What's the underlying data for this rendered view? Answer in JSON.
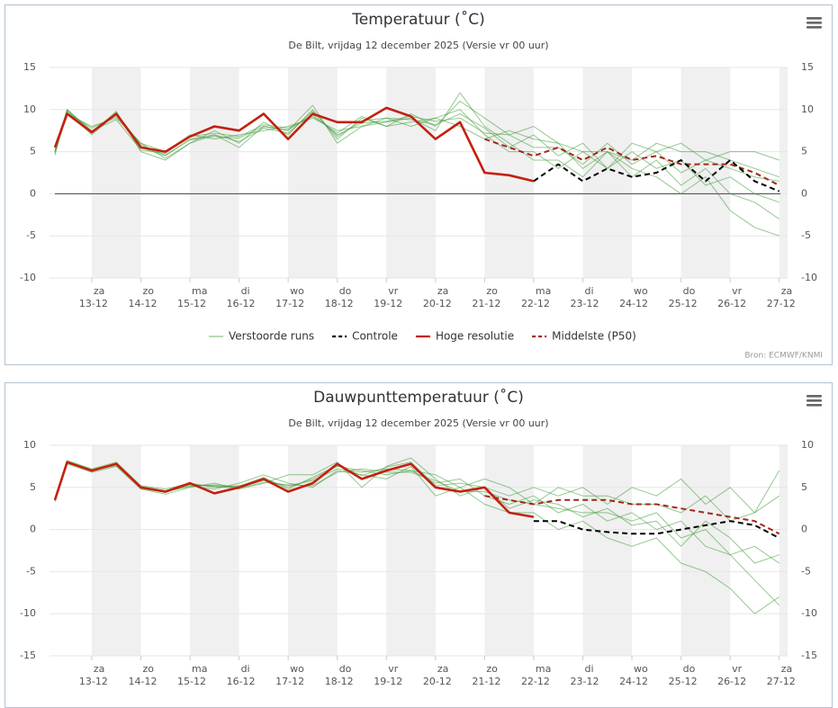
{
  "chart_data": [
    {
      "type": "line",
      "title": "Temperatuur (˚C)",
      "subtitle": "De Bilt, vrijdag 12 december 2025 (Versie vr 00 uur)",
      "credits": "Bron: ECMWF/KNMI",
      "x": [
        12.25,
        12.5,
        13,
        13.5,
        14,
        14.5,
        15,
        15.5,
        16,
        16.5,
        17,
        17.5,
        18,
        18.5,
        19,
        19.5,
        20,
        20.5,
        21,
        21.5,
        22,
        22.5,
        23,
        23.5,
        24,
        24.5,
        25,
        25.5,
        26,
        26.5,
        27
      ],
      "xlim": [
        12.14,
        27.17
      ],
      "xticks": [
        {
          "value": 13,
          "label": "13-12"
        },
        {
          "value": 14,
          "label": "14-12"
        },
        {
          "value": 15,
          "label": "15-12"
        },
        {
          "value": 16,
          "label": "16-12"
        },
        {
          "value": 17,
          "label": "17-12"
        },
        {
          "value": 18,
          "label": "18-12"
        },
        {
          "value": 19,
          "label": "19-12"
        },
        {
          "value": 20,
          "label": "20-12"
        },
        {
          "value": 21,
          "label": "21-12"
        },
        {
          "value": 22,
          "label": "22-12"
        },
        {
          "value": 23,
          "label": "23-12"
        },
        {
          "value": 24,
          "label": "24-12"
        },
        {
          "value": 25,
          "label": "25-12"
        },
        {
          "value": 26,
          "label": "26-12"
        },
        {
          "value": 27,
          "label": "27-12"
        }
      ],
      "xtick_days": [
        "za",
        "zo",
        "ma",
        "di",
        "wo",
        "do",
        "vr",
        "za",
        "zo",
        "ma",
        "di",
        "wo",
        "do",
        "vr",
        "za"
      ],
      "ylim": [
        -10,
        15
      ],
      "yticks": [
        -10,
        -5,
        0,
        5,
        10,
        15
      ],
      "grid": true,
      "zero_line": true,
      "legend": "bottom",
      "series": [
        {
          "name": "Verstoorde runs",
          "color": "#3d9b35",
          "members": [
            [
              4.8,
              10,
              7.2,
              9.8,
              5,
              4,
              6,
              7.5,
              6,
              8.5,
              7,
              10,
              6.5,
              9,
              8,
              9.5,
              8,
              11,
              9,
              7,
              8,
              6,
              3,
              5,
              2,
              4,
              1,
              3,
              0,
              -1,
              -3
            ],
            [
              5.2,
              9.5,
              8,
              9,
              6,
              5,
              7,
              6.5,
              7,
              7.5,
              8,
              9,
              7.5,
              8,
              9,
              8,
              9,
              10,
              7,
              5,
              5,
              3,
              5,
              3,
              6,
              5,
              6,
              4,
              5,
              5,
              4
            ],
            [
              5,
              9.8,
              7,
              9.5,
              5.5,
              4.5,
              6.5,
              7,
              5.5,
              8,
              7.5,
              10.5,
              6,
              8,
              8.5,
              9,
              7.5,
              12,
              8,
              6,
              4,
              4,
              2,
              5,
              3,
              2,
              0,
              2,
              -2,
              -4,
              -5
            ],
            [
              5.5,
              10,
              7.5,
              8.8,
              5.2,
              4.8,
              6.8,
              7.2,
              6.8,
              8.2,
              7.8,
              9.2,
              7.2,
              9.2,
              8,
              8.5,
              9,
              8,
              6.5,
              7.5,
              6.5,
              6,
              5,
              5,
              4,
              6,
              5,
              5,
              4,
              3,
              2
            ],
            [
              4.6,
              9.6,
              7.8,
              9.2,
              6,
              4.2,
              6,
              7,
              6.2,
              7.8,
              7.2,
              9.8,
              6.8,
              8.7,
              9,
              8.8,
              8.2,
              9.5,
              7.8,
              5.5,
              7,
              4.5,
              6,
              3,
              5,
              3,
              4,
              1,
              2,
              0,
              -1
            ],
            [
              5,
              9.9,
              7.4,
              9.6,
              5.8,
              4.6,
              6.4,
              6.8,
              6.6,
              8,
              7.6,
              9.4,
              7,
              8.4,
              8.6,
              9.2,
              8.6,
              9,
              7.2,
              7,
              5.5,
              5.5,
              3.5,
              6,
              3.5,
              5,
              2.5,
              4,
              3,
              2,
              1.5
            ]
          ]
        },
        {
          "name": "Controle",
          "color": "#000000",
          "dash": true,
          "values": [
            null,
            null,
            null,
            null,
            null,
            null,
            null,
            null,
            null,
            null,
            null,
            null,
            null,
            null,
            null,
            null,
            null,
            null,
            null,
            null,
            1.5,
            3.5,
            1.5,
            3,
            2,
            2.5,
            4,
            1.5,
            4,
            1.5,
            0.3
          ]
        },
        {
          "name": "Hoge resolutie",
          "color": "#c4200e",
          "values": [
            5.5,
            9.5,
            7.3,
            9.5,
            5.5,
            5,
            6.8,
            8,
            7.5,
            9.5,
            6.5,
            9.5,
            8.5,
            8.5,
            10.2,
            9.2,
            6.5,
            8.5,
            2.5,
            2.2,
            1.5,
            null,
            null,
            null,
            null,
            null,
            null,
            null,
            null,
            null,
            null
          ]
        },
        {
          "name": "Middelste (P50)",
          "color": "#a3261b",
          "dash": true,
          "values": [
            null,
            null,
            null,
            null,
            null,
            null,
            null,
            null,
            null,
            null,
            null,
            null,
            null,
            null,
            null,
            null,
            null,
            null,
            6.5,
            5.5,
            4.5,
            5.5,
            4,
            5.5,
            4,
            4.5,
            3.5,
            3.5,
            3.5,
            2.5,
            1
          ]
        }
      ]
    },
    {
      "type": "line",
      "title": "Dauwpunttemperatuur (˚C)",
      "subtitle": "De Bilt, vrijdag 12 december 2025 (Versie vr 00 uur)",
      "x": [
        12.25,
        12.5,
        13,
        13.5,
        14,
        14.5,
        15,
        15.5,
        16,
        16.5,
        17,
        17.5,
        18,
        18.5,
        19,
        19.5,
        20,
        20.5,
        21,
        21.5,
        22,
        22.5,
        23,
        23.5,
        24,
        24.5,
        25,
        25.5,
        26,
        26.5,
        27
      ],
      "xlim": [
        12.14,
        27.17
      ],
      "xticks": [
        {
          "value": 13,
          "label": "13-12"
        },
        {
          "value": 14,
          "label": "14-12"
        },
        {
          "value": 15,
          "label": "15-12"
        },
        {
          "value": 16,
          "label": "16-12"
        },
        {
          "value": 17,
          "label": "17-12"
        },
        {
          "value": 18,
          "label": "18-12"
        },
        {
          "value": 19,
          "label": "19-12"
        },
        {
          "value": 20,
          "label": "20-12"
        },
        {
          "value": 21,
          "label": "21-12"
        },
        {
          "value": 22,
          "label": "22-12"
        },
        {
          "value": 23,
          "label": "23-12"
        },
        {
          "value": 24,
          "label": "24-12"
        },
        {
          "value": 25,
          "label": "25-12"
        },
        {
          "value": 26,
          "label": "26-12"
        },
        {
          "value": 27,
          "label": "27-12"
        }
      ],
      "xtick_days": [
        "za",
        "zo",
        "ma",
        "di",
        "wo",
        "do",
        "vr",
        "za",
        "zo",
        "ma",
        "di",
        "wo",
        "do",
        "vr",
        "za"
      ],
      "ylim": [
        -15,
        10
      ],
      "yticks": [
        -15,
        -10,
        -5,
        0,
        5,
        10
      ],
      "grid": true,
      "series": [
        {
          "color": "#3d9b35",
          "members": [
            [
              3.5,
              8.2,
              7.2,
              8,
              5.2,
              4.8,
              5.5,
              5,
              5.2,
              6,
              5,
              6,
              7.5,
              7,
              6.5,
              7,
              5.5,
              6,
              4,
              3,
              4,
              2,
              3,
              1,
              2,
              0,
              1,
              -2,
              -3,
              -6,
              -9
            ],
            [
              3.8,
              7.8,
              6.8,
              7.5,
              4.8,
              4.2,
              5,
              5.5,
              4.8,
              5.5,
              6.5,
              6.5,
              8,
              5,
              7.5,
              8.5,
              6,
              4,
              5,
              4,
              5,
              4,
              5,
              3,
              5,
              4,
              6,
              3,
              5,
              2,
              4
            ],
            [
              3.3,
              8,
              7,
              7.8,
              5,
              4.5,
              5.2,
              4.8,
              5.5,
              6.5,
              5.5,
              5,
              7,
              6.5,
              6,
              7.5,
              4,
              5,
              3,
              2,
              2,
              0,
              1,
              -1,
              -2,
              -1,
              -4,
              -5,
              -7,
              -10,
              -8
            ],
            [
              3.6,
              8.1,
              7.1,
              7.7,
              5.1,
              4.6,
              5.3,
              5.2,
              5,
              5.8,
              5.2,
              5.8,
              7.2,
              6.8,
              7.2,
              7,
              6.5,
              5,
              6,
              5,
              3,
              5,
              4,
              4,
              3,
              3,
              2,
              4,
              1,
              2,
              7
            ],
            [
              3.4,
              7.9,
              6.9,
              7.9,
              4.9,
              4.4,
              5.4,
              5.1,
              4.9,
              5.6,
              5.3,
              5.2,
              6.8,
              7.2,
              6.8,
              6.8,
              5.8,
              4.5,
              4.5,
              3.5,
              3,
              2.5,
              2,
              2,
              1,
              2,
              -1,
              0,
              -3,
              -2,
              -4
            ],
            [
              3.5,
              8,
              7,
              7.6,
              5,
              4.5,
              5.1,
              5.3,
              5.1,
              6.2,
              4.8,
              6.2,
              7.6,
              6.4,
              7.4,
              8,
              5.2,
              5.5,
              5,
              2.5,
              3.5,
              3,
              1.5,
              2.5,
              0.5,
              1,
              -2,
              1,
              -1,
              -4,
              -3
            ]
          ]
        },
        {
          "color": "#000000",
          "dash": true,
          "values": [
            null,
            null,
            null,
            null,
            null,
            null,
            null,
            null,
            null,
            null,
            null,
            null,
            null,
            null,
            null,
            null,
            null,
            null,
            null,
            null,
            1,
            1,
            0,
            -0.3,
            -0.5,
            -0.5,
            0,
            0.5,
            1,
            0.5,
            -1
          ]
        },
        {
          "color": "#c4200e",
          "values": [
            3.5,
            8,
            7,
            7.8,
            5,
            4.5,
            5.5,
            4.3,
            5,
            6,
            4.5,
            5.5,
            7.8,
            6,
            7,
            7.8,
            5,
            4.5,
            5,
            2,
            1.5,
            null,
            null,
            null,
            null,
            null,
            null,
            null,
            null,
            null,
            null
          ]
        },
        {
          "color": "#a3261b",
          "dash": true,
          "values": [
            null,
            null,
            null,
            null,
            null,
            null,
            null,
            null,
            null,
            null,
            null,
            null,
            null,
            null,
            null,
            null,
            null,
            null,
            4,
            3.5,
            3,
            3.5,
            3.5,
            3.5,
            3,
            3,
            2.5,
            2,
            1.5,
            1,
            -0.5
          ]
        }
      ]
    }
  ]
}
